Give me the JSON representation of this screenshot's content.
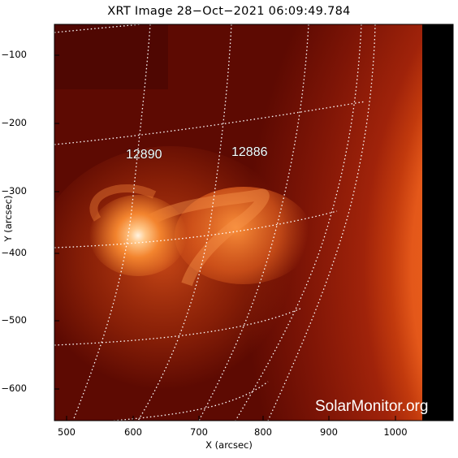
{
  "title": "XRT Image 28−Oct−2021 06:09:49.784",
  "axes": {
    "xlabel": "X (arcsec)",
    "ylabel": "Y (arcsec)",
    "x_ticks": [
      "500",
      "600",
      "700",
      "800",
      "900",
      "1000"
    ],
    "y_ticks": [
      "−100",
      "−200",
      "−300",
      "−400",
      "−500",
      "−600"
    ]
  },
  "regions": [
    {
      "label": "12890"
    },
    {
      "label": "12886"
    }
  ],
  "watermark": "SolarMonitor.org",
  "colors": {
    "sun_core": "#ff9a3c",
    "sun_mid": "#e0541a",
    "corona": "#8a1206",
    "background_disk": "#6b0c02",
    "space": "#000000",
    "grid": "#ffffff"
  }
}
